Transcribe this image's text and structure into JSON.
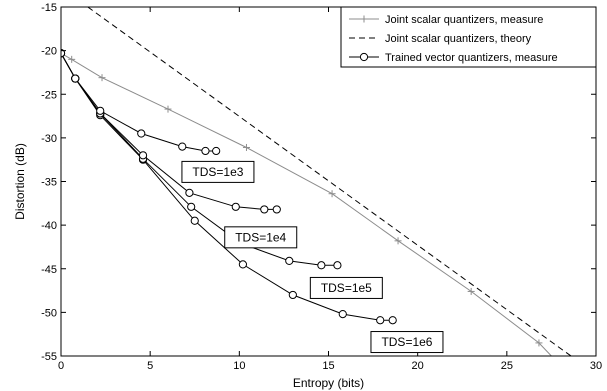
{
  "chart_data": {
    "type": "line",
    "xlabel": "Entropy (bits)",
    "ylabel": "Distortion (dB)",
    "xlim": [
      0,
      30
    ],
    "ylim": [
      -55,
      -15
    ],
    "xticks": [
      0,
      5,
      10,
      15,
      20,
      25,
      30
    ],
    "yticks": [
      -15,
      -20,
      -25,
      -30,
      -35,
      -40,
      -45,
      -50,
      -55
    ],
    "grid": false,
    "legend_position": "top-right",
    "series": [
      {
        "name": "Joint scalar quantizers, measure",
        "color": "#8c8c8c",
        "line": "solid",
        "marker": "plus",
        "points": [
          [
            0,
            -20.3
          ],
          [
            0.6,
            -21.0
          ],
          [
            2.3,
            -23.1
          ],
          [
            6.0,
            -26.7
          ],
          [
            10.4,
            -31.1
          ],
          [
            15.2,
            -36.4
          ],
          [
            18.9,
            -41.8
          ],
          [
            23.0,
            -47.6
          ],
          [
            26.8,
            -53.5
          ],
          [
            27.5,
            -55.0
          ]
        ]
      },
      {
        "name": "Joint scalar quantizers, theory",
        "color": "#000000",
        "line": "dashed",
        "marker": "none",
        "points": [
          [
            1.5,
            -15.0
          ],
          [
            28.6,
            -55.0
          ]
        ]
      },
      {
        "name": "Trained vector quantizers, measure",
        "color": "#000000",
        "line": "solid",
        "marker": "circle",
        "points": [
          [
            0,
            -20.3
          ],
          [
            0.8,
            -23.2
          ],
          [
            2.2,
            -26.9
          ],
          [
            4.5,
            -29.5
          ],
          [
            6.8,
            -31.0
          ],
          [
            8.1,
            -31.5
          ],
          [
            8.7,
            -31.5
          ]
        ]
      },
      {
        "name": "TDS=1e4",
        "color": "#000000",
        "line": "solid",
        "marker": "circle",
        "points": [
          [
            0,
            -20.3
          ],
          [
            0.8,
            -23.2
          ],
          [
            2.2,
            -27.2
          ],
          [
            4.6,
            -32.0
          ],
          [
            7.2,
            -36.3
          ],
          [
            9.8,
            -37.9
          ],
          [
            11.4,
            -38.2
          ],
          [
            12.1,
            -38.2
          ]
        ]
      },
      {
        "name": "TDS=1e5",
        "color": "#000000",
        "line": "solid",
        "marker": "circle",
        "points": [
          [
            0,
            -20.3
          ],
          [
            0.8,
            -23.2
          ],
          [
            2.2,
            -27.2
          ],
          [
            4.6,
            -32.4
          ],
          [
            7.3,
            -37.9
          ],
          [
            10.1,
            -42.1
          ],
          [
            12.8,
            -44.1
          ],
          [
            14.6,
            -44.6
          ],
          [
            15.5,
            -44.6
          ]
        ]
      },
      {
        "name": "TDS=1e6",
        "color": "#000000",
        "line": "solid",
        "marker": "circle",
        "points": [
          [
            0,
            -20.3
          ],
          [
            0.8,
            -23.2
          ],
          [
            2.2,
            -27.4
          ],
          [
            4.6,
            -32.5
          ],
          [
            7.5,
            -39.5
          ],
          [
            10.2,
            -44.5
          ],
          [
            13.0,
            -48.0
          ],
          [
            15.8,
            -50.2
          ],
          [
            17.9,
            -50.9
          ],
          [
            18.6,
            -50.9
          ]
        ]
      }
    ],
    "legend": [
      "Joint scalar quantizers, measure",
      "Joint scalar quantizers, theory",
      "Trained vector quantizers, measure"
    ],
    "annotations": [
      {
        "text": "TDS=1e3",
        "x": 8.8,
        "y": -33.9
      },
      {
        "text": "TDS=1e4",
        "x": 11.2,
        "y": -41.4
      },
      {
        "text": "TDS=1e5",
        "x": 16.0,
        "y": -47.2
      },
      {
        "text": "TDS=1e6",
        "x": 19.4,
        "y": -53.4
      }
    ]
  }
}
